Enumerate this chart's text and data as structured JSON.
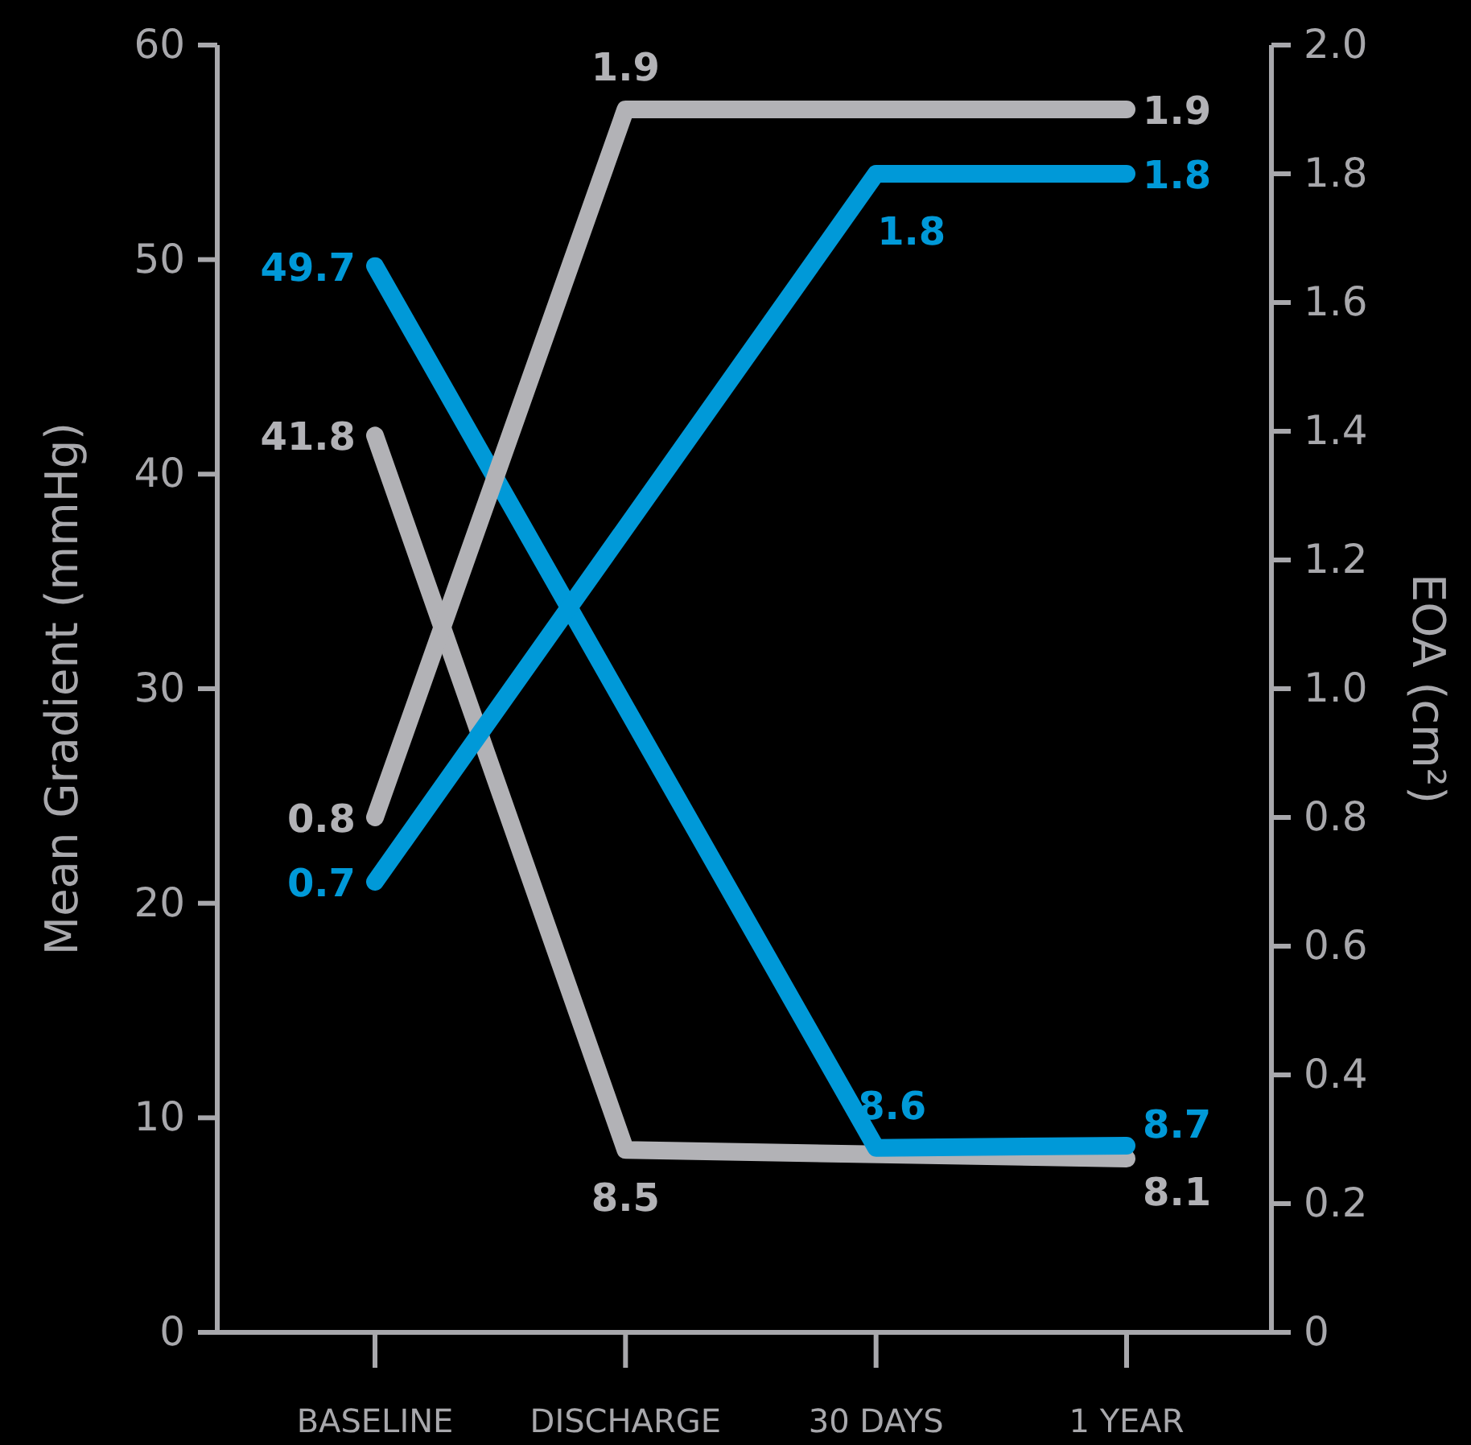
{
  "chart_data": {
    "type": "line",
    "categories": [
      "BASELINE",
      "DISCHARGE",
      "30 DAYS",
      "1 YEAR"
    ],
    "ylabel": "Mean Gradient (mmHg)",
    "y2label": "EOA (cm²)",
    "ylim": [
      0,
      60
    ],
    "yticks": [
      0,
      10,
      20,
      30,
      40,
      50,
      60
    ],
    "y2lim": [
      0,
      2
    ],
    "y2ticks": [
      0,
      {
        "value": 0.2,
        "label": "0.2"
      },
      {
        "value": 0.4,
        "label": "0.4"
      },
      {
        "value": 0.6,
        "label": "0.6"
      },
      {
        "value": 0.8,
        "label": "0.8"
      },
      {
        "value": 1,
        "label": "1.0"
      },
      {
        "value": 1.2,
        "label": "1.2"
      },
      {
        "value": 1.4,
        "label": "1.4"
      },
      {
        "value": 1.6,
        "label": "1.6"
      },
      {
        "value": 1.8,
        "label": "1.8"
      },
      {
        "value": 2,
        "label": "2.0"
      }
    ],
    "data_labels": true,
    "grid": false,
    "marker": "none",
    "line_style": "solid",
    "series": [
      {
        "color": "#b2b2b6",
        "x": [
          "BASELINE",
          "DISCHARGE",
          "1 YEAR"
        ],
        "values": [
          41.8,
          8.5,
          8.1
        ]
      },
      {
        "color": "#0099d8",
        "x": [
          "BASELINE",
          "30 DAYS",
          "1 YEAR"
        ],
        "values": [
          49.7,
          8.6,
          8.7
        ]
      },
      {
        "color": "#b2b2b6",
        "axis": "y2",
        "x": [
          "BASELINE",
          "DISCHARGE",
          "1 YEAR"
        ],
        "values": [
          0.8,
          1.9,
          1.9
        ]
      },
      {
        "color": "#0099d8",
        "axis": "y2",
        "x": [
          "BASELINE",
          "30 DAYS",
          "1 YEAR"
        ],
        "values": [
          0.7,
          1.8,
          1.8
        ]
      }
    ]
  }
}
